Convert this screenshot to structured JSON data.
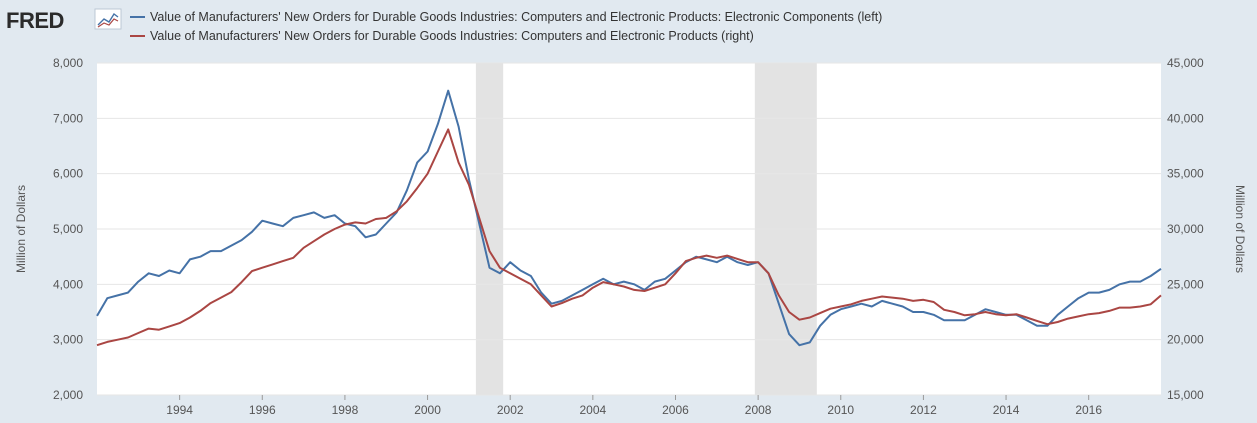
{
  "brand": {
    "logo_text": "FRED",
    "logo_icon": "fred-chart-icon"
  },
  "colors": {
    "background": "#e1e9f0",
    "plot_bg": "#ffffff",
    "recession": "#e3e3e3",
    "grid": "#e6e6e6",
    "series_left": "#4572a7",
    "series_right": "#aa4643"
  },
  "chart_data": {
    "type": "line",
    "title": "",
    "legend_position": "top-left",
    "grid": true,
    "x_range": [
      1992.0,
      2017.75
    ],
    "x_ticks": [
      "1994",
      "1996",
      "1998",
      "2000",
      "2002",
      "2004",
      "2006",
      "2008",
      "2010",
      "2012",
      "2014",
      "2016"
    ],
    "y_left": {
      "label": "Million of Dollars",
      "range": [
        2000,
        8000
      ],
      "ticks": [
        "2,000",
        "3,000",
        "4,000",
        "5,000",
        "6,000",
        "7,000",
        "8,000"
      ]
    },
    "y_right": {
      "label": "Million of Dollars",
      "range": [
        15000,
        45000
      ],
      "ticks": [
        "15,000",
        "20,000",
        "25,000",
        "30,000",
        "35,000",
        "40,000",
        "45,000"
      ]
    },
    "recessions": [
      {
        "start": 2001.17,
        "end": 2001.83
      },
      {
        "start": 2007.92,
        "end": 2009.42
      }
    ],
    "series": [
      {
        "name": "Value of Manufacturers' New Orders for Durable Goods Industries: Computers and Electronic Products: Electronic Components (left)",
        "axis": "left",
        "x": [
          1992.0,
          1992.25,
          1992.5,
          1992.75,
          1993.0,
          1993.25,
          1993.5,
          1993.75,
          1994.0,
          1994.25,
          1994.5,
          1994.75,
          1995.0,
          1995.25,
          1995.5,
          1995.75,
          1996.0,
          1996.25,
          1996.5,
          1996.75,
          1997.0,
          1997.25,
          1997.5,
          1997.75,
          1998.0,
          1998.25,
          1998.5,
          1998.75,
          1999.0,
          1999.25,
          1999.5,
          1999.75,
          2000.0,
          2000.25,
          2000.5,
          2000.75,
          2001.0,
          2001.25,
          2001.5,
          2001.75,
          2002.0,
          2002.25,
          2002.5,
          2002.75,
          2003.0,
          2003.25,
          2003.5,
          2003.75,
          2004.0,
          2004.25,
          2004.5,
          2004.75,
          2005.0,
          2005.25,
          2005.5,
          2005.75,
          2006.0,
          2006.25,
          2006.5,
          2006.75,
          2007.0,
          2007.25,
          2007.5,
          2007.75,
          2008.0,
          2008.25,
          2008.5,
          2008.75,
          2009.0,
          2009.25,
          2009.5,
          2009.75,
          2010.0,
          2010.25,
          2010.5,
          2010.75,
          2011.0,
          2011.25,
          2011.5,
          2011.75,
          2012.0,
          2012.25,
          2012.5,
          2012.75,
          2013.0,
          2013.25,
          2013.5,
          2013.75,
          2014.0,
          2014.25,
          2014.5,
          2014.75,
          2015.0,
          2015.25,
          2015.5,
          2015.75,
          2016.0,
          2016.25,
          2016.5,
          2016.75,
          2017.0,
          2017.25,
          2017.5,
          2017.75
        ],
        "values": [
          3430,
          3750,
          3800,
          3850,
          4050,
          4200,
          4150,
          4250,
          4200,
          4450,
          4500,
          4600,
          4600,
          4700,
          4800,
          4950,
          5150,
          5100,
          5050,
          5200,
          5250,
          5300,
          5200,
          5250,
          5100,
          5050,
          4850,
          4900,
          5100,
          5300,
          5700,
          6200,
          6400,
          6900,
          7500,
          6850,
          5900,
          5100,
          4300,
          4200,
          4400,
          4250,
          4150,
          3850,
          3650,
          3700,
          3800,
          3900,
          4000,
          4100,
          4000,
          4050,
          4000,
          3900,
          4050,
          4100,
          4250,
          4400,
          4500,
          4450,
          4400,
          4500,
          4400,
          4350,
          4400,
          4200,
          3650,
          3100,
          2900,
          2950,
          3250,
          3450,
          3550,
          3600,
          3650,
          3600,
          3700,
          3650,
          3600,
          3500,
          3500,
          3450,
          3350,
          3350,
          3350,
          3450,
          3550,
          3500,
          3450,
          3450,
          3350,
          3250,
          3250,
          3450,
          3600,
          3750,
          3850,
          3850,
          3900,
          4000,
          4050,
          4050,
          4150,
          4280
        ]
      },
      {
        "name": "Value of Manufacturers' New Orders for Durable Goods Industries: Computers and Electronic Products (right)",
        "axis": "right",
        "x": [
          1992.0,
          1992.25,
          1992.5,
          1992.75,
          1993.0,
          1993.25,
          1993.5,
          1993.75,
          1994.0,
          1994.25,
          1994.5,
          1994.75,
          1995.0,
          1995.25,
          1995.5,
          1995.75,
          1996.0,
          1996.25,
          1996.5,
          1996.75,
          1997.0,
          1997.25,
          1997.5,
          1997.75,
          1998.0,
          1998.25,
          1998.5,
          1998.75,
          1999.0,
          1999.25,
          1999.5,
          1999.75,
          2000.0,
          2000.25,
          2000.5,
          2000.75,
          2001.0,
          2001.25,
          2001.5,
          2001.75,
          2002.0,
          2002.25,
          2002.5,
          2002.75,
          2003.0,
          2003.25,
          2003.5,
          2003.75,
          2004.0,
          2004.25,
          2004.5,
          2004.75,
          2005.0,
          2005.25,
          2005.5,
          2005.75,
          2006.0,
          2006.25,
          2006.5,
          2006.75,
          2007.0,
          2007.25,
          2007.5,
          2007.75,
          2008.0,
          2008.25,
          2008.5,
          2008.75,
          2009.0,
          2009.25,
          2009.5,
          2009.75,
          2010.0,
          2010.25,
          2010.5,
          2010.75,
          2011.0,
          2011.25,
          2011.5,
          2011.75,
          2012.0,
          2012.25,
          2012.5,
          2012.75,
          2013.0,
          2013.25,
          2013.5,
          2013.75,
          2014.0,
          2014.25,
          2014.5,
          2014.75,
          2015.0,
          2015.25,
          2015.5,
          2015.75,
          2016.0,
          2016.25,
          2016.5,
          2016.75,
          2017.0,
          2017.25,
          2017.5,
          2017.75
        ],
        "values": [
          19500,
          19800,
          20000,
          20200,
          20600,
          21000,
          20900,
          21200,
          21500,
          22000,
          22600,
          23300,
          23800,
          24300,
          25200,
          26200,
          26500,
          26800,
          27100,
          27400,
          28300,
          28900,
          29500,
          30000,
          30400,
          30600,
          30500,
          30900,
          31000,
          31600,
          32500,
          33700,
          35000,
          37000,
          39000,
          36000,
          34000,
          31000,
          28000,
          26500,
          26000,
          25500,
          25000,
          24000,
          23000,
          23300,
          23700,
          24000,
          24700,
          25200,
          25000,
          24800,
          24500,
          24400,
          24700,
          25000,
          26000,
          27100,
          27400,
          27600,
          27400,
          27600,
          27300,
          27000,
          27000,
          26000,
          24000,
          22500,
          21800,
          22000,
          22400,
          22800,
          23000,
          23200,
          23500,
          23700,
          23900,
          23800,
          23700,
          23500,
          23600,
          23400,
          22700,
          22500,
          22200,
          22300,
          22500,
          22300,
          22200,
          22300,
          22000,
          21700,
          21400,
          21600,
          21900,
          22100,
          22300,
          22400,
          22600,
          22900,
          22900,
          23000,
          23200,
          24000
        ]
      }
    ]
  }
}
